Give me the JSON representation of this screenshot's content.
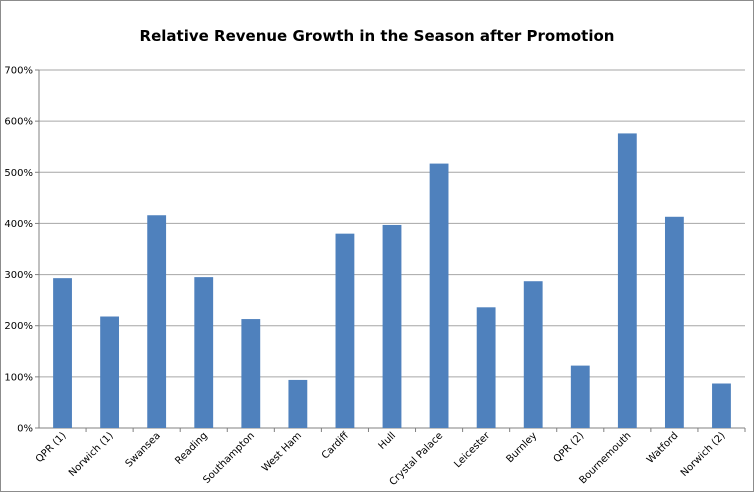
{
  "chart_data": {
    "type": "bar",
    "title": "Relative Revenue Growth in the Season after Promotion",
    "xlabel": "",
    "ylabel": "",
    "categories": [
      "QPR (1)",
      "Norwich (1)",
      "Swansea",
      "Reading",
      "Southampton",
      "West Ham",
      "Cardiff",
      "Hull",
      "Crystal Palace",
      "Leicester",
      "Burnley",
      "QPR (2)",
      "Bournemouth",
      "Watford",
      "Norwich (2)"
    ],
    "values": [
      293,
      218,
      416,
      295,
      213,
      94,
      380,
      397,
      517,
      236,
      287,
      122,
      576,
      413,
      87
    ],
    "ylim": [
      0,
      700
    ],
    "yticks": [
      "0%",
      "100%",
      "200%",
      "300%",
      "400%",
      "500%",
      "600%",
      "700%"
    ],
    "grid": true,
    "legend": "none",
    "bar_color": "#4f81bd",
    "grid_color": "#a6a6a6"
  }
}
